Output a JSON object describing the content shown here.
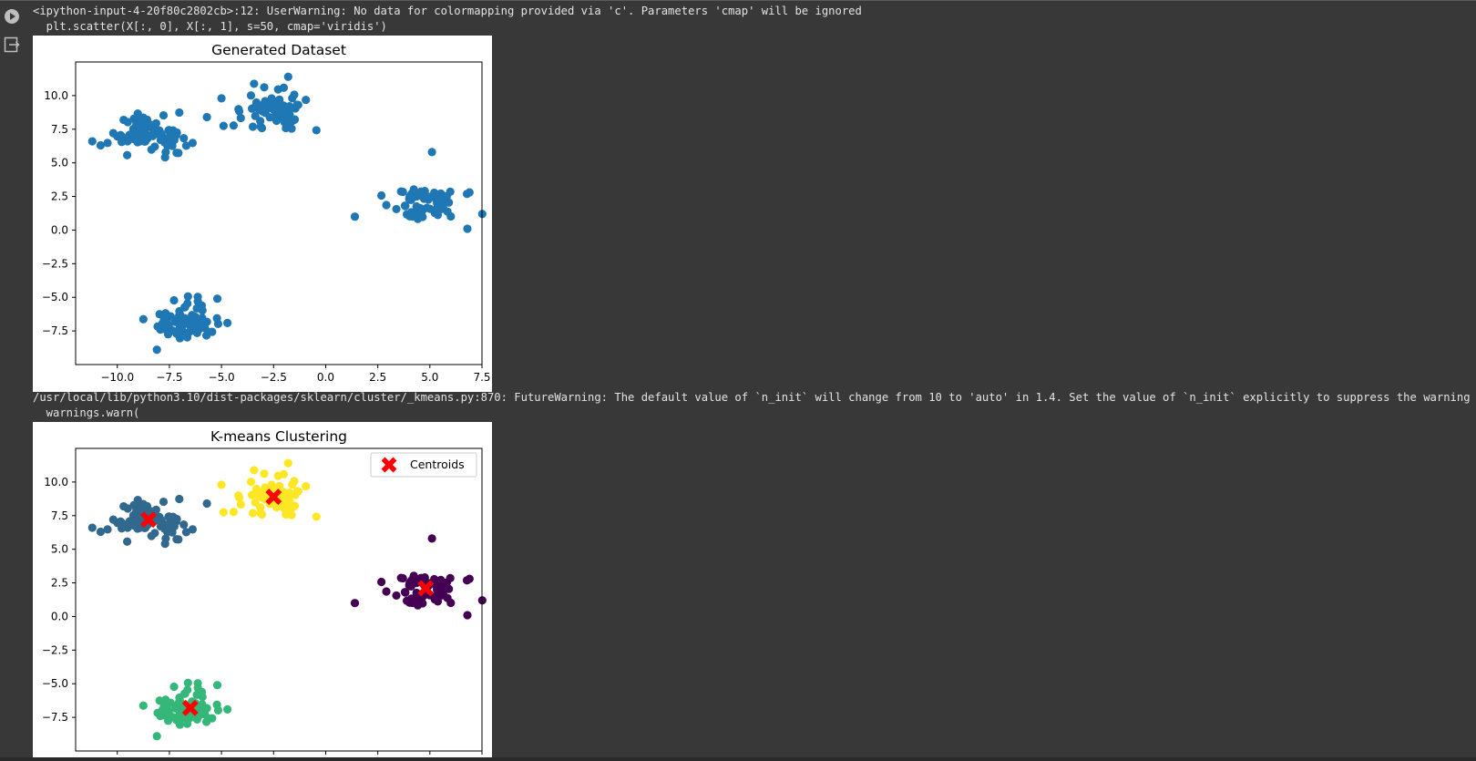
{
  "outputs": {
    "warning1": [
      "<ipython-input-4-20f80c2802cb>:12: UserWarning: No data for colormapping provided via 'c'. Parameters 'cmap' will be ignored",
      "  plt.scatter(X[:, 0], X[:, 1], s=50, cmap='viridis')"
    ],
    "warning2": [
      "/usr/local/lib/python3.10/dist-packages/sklearn/cluster/_kmeans.py:870: FutureWarning: The default value of `n_init` will change from 10 to 'auto' in 1.4. Set the value of `n_init` explicitly to suppress the warning",
      "  warnings.warn("
    ]
  },
  "icons": {
    "run": "play-circle-icon",
    "output": "output-redirect-icon"
  },
  "colors": {
    "background": "#383838",
    "text": "#e3e3e3",
    "point": "#1f77b4",
    "cluster0": "#440154",
    "cluster1": "#31688e",
    "cluster2": "#35b779",
    "cluster3": "#fde725",
    "centroid": "#ff0000"
  },
  "chart_data": [
    {
      "type": "scatter",
      "title": "Generated Dataset",
      "xlabel": "",
      "ylabel": "",
      "xlim": [
        -12,
        7.5
      ],
      "ylim": [
        -10,
        12.5
      ],
      "xticks": [
        "−10.0",
        "−7.5",
        "−5.0",
        "−2.5",
        "0.0",
        "2.5",
        "5.0",
        "7.5"
      ],
      "yticks": [
        "−7.5",
        "−5.0",
        "−2.5",
        "0.0",
        "2.5",
        "5.0",
        "7.5",
        "10.0"
      ],
      "grid": false,
      "series": [
        {
          "clusters": [
            {
              "center": [
                -8.5,
                7.2
              ],
              "spread": [
                1.2,
                1.0
              ],
              "n": 75
            },
            {
              "center": [
                -2.5,
                8.9
              ],
              "spread": [
                1.1,
                0.9
              ],
              "n": 75
            },
            {
              "center": [
                4.8,
                2.1
              ],
              "spread": [
                1.0,
                0.9
              ],
              "n": 75
            },
            {
              "center": [
                -6.7,
                -6.8
              ],
              "spread": [
                1.0,
                0.9
              ],
              "n": 75
            }
          ],
          "outliers": [
            [
              -11.2,
              6.6
            ],
            [
              -10.8,
              6.3
            ],
            [
              -5.7,
              8.4
            ],
            [
              -5.0,
              9.8
            ],
            [
              -1.8,
              11.4
            ],
            [
              1.4,
              1.0
            ],
            [
              5.1,
              5.8
            ],
            [
              6.8,
              0.1
            ],
            [
              6.9,
              2.8
            ],
            [
              -5.2,
              -5.1
            ],
            [
              -8.1,
              -8.9
            ]
          ]
        }
      ]
    },
    {
      "type": "scatter",
      "title": "K-means Clustering",
      "xlabel": "",
      "ylabel": "",
      "xlim": [
        -12,
        7.5
      ],
      "ylim": [
        -10,
        12.5
      ],
      "yticks": [
        "−7.5",
        "−5.0",
        "−2.5",
        "0.0",
        "2.5",
        "5.0",
        "7.5",
        "10.0"
      ],
      "legend": {
        "label": "Centroids",
        "placement": "top-right"
      },
      "grid": false,
      "clusters": [
        {
          "label": 0,
          "center": [
            4.8,
            2.1
          ],
          "spread": [
            1.0,
            0.9
          ],
          "n": 75
        },
        {
          "label": 1,
          "center": [
            -8.5,
            7.2
          ],
          "spread": [
            1.2,
            1.0
          ],
          "n": 75
        },
        {
          "label": 2,
          "center": [
            -6.7,
            -6.8
          ],
          "spread": [
            1.0,
            0.9
          ],
          "n": 75
        },
        {
          "label": 3,
          "center": [
            -2.5,
            8.9
          ],
          "spread": [
            1.1,
            0.9
          ],
          "n": 75
        }
      ],
      "centroids": [
        [
          -8.5,
          7.2
        ],
        [
          -2.5,
          8.9
        ],
        [
          4.8,
          2.1
        ],
        [
          -6.5,
          -6.8
        ]
      ]
    }
  ]
}
